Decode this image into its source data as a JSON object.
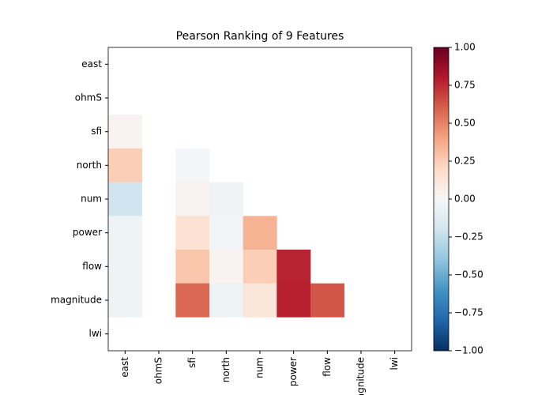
{
  "chart_data": {
    "type": "heatmap",
    "title": "Pearson Ranking of 9 Features",
    "x_categories": [
      "east",
      "ohmS",
      "sfi",
      "north",
      "num",
      "power",
      "flow",
      "magnitude",
      "lwi"
    ],
    "y_categories": [
      "east",
      "ohmS",
      "sfi",
      "north",
      "num",
      "power",
      "flow",
      "magnitude",
      "lwi"
    ],
    "values": [
      [
        null,
        null,
        null,
        null,
        null,
        null,
        null,
        null,
        null
      ],
      [
        null,
        null,
        null,
        null,
        null,
        null,
        null,
        null,
        null
      ],
      [
        0.03,
        null,
        null,
        null,
        null,
        null,
        null,
        null,
        null
      ],
      [
        0.25,
        null,
        -0.02,
        null,
        null,
        null,
        null,
        null,
        null
      ],
      [
        -0.2,
        null,
        0.03,
        -0.04,
        null,
        null,
        null,
        null,
        null
      ],
      [
        -0.05,
        null,
        0.15,
        -0.03,
        0.35,
        null,
        null,
        null,
        null
      ],
      [
        -0.05,
        null,
        0.28,
        0.03,
        0.25,
        0.77,
        null,
        null,
        null
      ],
      [
        -0.05,
        null,
        0.58,
        -0.05,
        0.12,
        0.78,
        0.63,
        null,
        null
      ],
      [
        null,
        null,
        null,
        null,
        null,
        null,
        null,
        null,
        null
      ]
    ],
    "colormap": "RdBu_r",
    "clim": [
      -1,
      1
    ],
    "cticks": [
      {
        "value": -1,
        "label": "−1.00"
      },
      {
        "value": -0.75,
        "label": "−0.75"
      },
      {
        "value": -0.5,
        "label": "−0.50"
      },
      {
        "value": -0.25,
        "label": "−0.25"
      },
      {
        "value": 0,
        "label": "0.00"
      },
      {
        "value": 0.25,
        "label": "0.25"
      },
      {
        "value": 0.5,
        "label": "0.50"
      },
      {
        "value": 0.75,
        "label": "0.75"
      },
      {
        "value": 1,
        "label": "1.00"
      }
    ]
  }
}
